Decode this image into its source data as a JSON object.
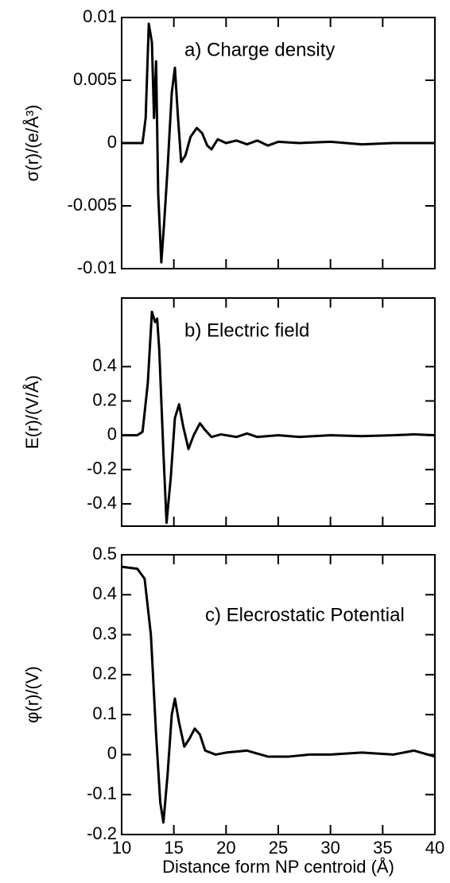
{
  "chart_data": [
    {
      "type": "line",
      "annotation": "a) Charge density",
      "y_label": "σ(r)/(e/Å³)",
      "xlim": [
        10,
        40
      ],
      "xticks": [
        10,
        15,
        20,
        25,
        30,
        35,
        40
      ],
      "ylim": [
        -0.01,
        0.01
      ],
      "yticks": [
        -0.01,
        -0.005,
        0,
        0.005,
        0.01
      ],
      "x": [
        10,
        12,
        12.3,
        12.6,
        12.9,
        13.1,
        13.3,
        13.5,
        13.8,
        14.1,
        14.4,
        14.8,
        15.1,
        15.4,
        15.7,
        16.1,
        16.6,
        17.2,
        17.7,
        18.2,
        18.6,
        19.2,
        20,
        21,
        22,
        23,
        24,
        25,
        27,
        30,
        33,
        36,
        40
      ],
      "series": [
        {
          "color": "#000000",
          "values": [
            0,
            0,
            0.002,
            0.0095,
            0.008,
            0.002,
            0.0065,
            -0.004,
            -0.0095,
            -0.006,
            -0.002,
            0.004,
            0.006,
            0.002,
            -0.0015,
            -0.001,
            0.0005,
            0.0012,
            0.0008,
            -0.0002,
            -0.0005,
            0.0003,
            0,
            0.0002,
            -0.0001,
            0.0002,
            -0.0002,
            0.0001,
            0,
            0.0001,
            -0.0001,
            0,
            0
          ]
        }
      ]
    },
    {
      "type": "line",
      "annotation": "b) Electric field",
      "y_label": "E(r)/(V/Å)",
      "xlim": [
        10,
        40
      ],
      "xticks": [
        10,
        15,
        20,
        25,
        30,
        35,
        40
      ],
      "ylim": [
        -0.53,
        0.8
      ],
      "yticks": [
        -0.4,
        -0.2,
        0,
        0.2,
        0.4
      ],
      "x": [
        10,
        11.5,
        12,
        12.5,
        12.9,
        13.2,
        13.4,
        13.6,
        14,
        14.3,
        14.7,
        15.1,
        15.5,
        15.9,
        16.4,
        16.9,
        17.5,
        18,
        18.6,
        19.5,
        21,
        22,
        23,
        25,
        27,
        30,
        33,
        36,
        38,
        40
      ],
      "series": [
        {
          "color": "#000000",
          "values": [
            0,
            0,
            0.02,
            0.3,
            0.72,
            0.66,
            0.68,
            0.5,
            -0.1,
            -0.51,
            -0.25,
            0.1,
            0.18,
            0.05,
            -0.08,
            0,
            0.07,
            0.03,
            -0.01,
            0.005,
            -0.01,
            0.01,
            -0.01,
            0,
            -0.01,
            0,
            -0.005,
            0,
            0.005,
            0
          ]
        }
      ]
    },
    {
      "type": "line",
      "annotation": "c) Elecrostatic Potential",
      "y_label": "φ(r)/(V)",
      "x_label": "Distance form NP centroid (Å)",
      "xlim": [
        10,
        40
      ],
      "xticks": [
        10,
        15,
        20,
        25,
        30,
        35,
        40
      ],
      "ylim": [
        -0.2,
        0.5
      ],
      "yticks": [
        -0.2,
        -0.1,
        0,
        0.1,
        0.2,
        0.3,
        0.4,
        0.5
      ],
      "x": [
        10,
        11.5,
        12.2,
        12.8,
        13.3,
        13.7,
        14,
        14.4,
        14.8,
        15.1,
        15.5,
        16,
        16.5,
        17,
        17.5,
        18,
        19,
        20,
        22,
        24,
        26,
        28,
        30,
        33,
        36,
        38,
        40
      ],
      "series": [
        {
          "color": "#000000",
          "values": [
            0.47,
            0.465,
            0.44,
            0.3,
            0.05,
            -0.12,
            -0.17,
            -0.05,
            0.1,
            0.14,
            0.08,
            0.02,
            0.04,
            0.065,
            0.05,
            0.01,
            0,
            0.005,
            0.01,
            -0.005,
            -0.005,
            0,
            0,
            0.005,
            0,
            0.01,
            -0.005
          ]
        }
      ]
    }
  ]
}
